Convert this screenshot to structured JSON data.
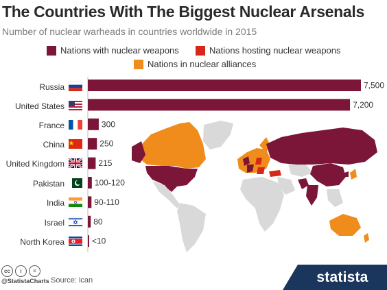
{
  "header": {
    "title": "The Countries With The Biggest Nuclear Arsenals",
    "subtitle": "Number of nuclear warheads in countries worldwide in 2015"
  },
  "legend": [
    {
      "label": "Nations with nuclear weapons",
      "color": "#7b1638"
    },
    {
      "label": "Nations hosting nuclear weapons",
      "color": "#d62718"
    },
    {
      "label": "Nations in nuclear alliances",
      "color": "#f08c1c"
    }
  ],
  "chart_data": {
    "type": "bar",
    "orientation": "horizontal",
    "title": "The Countries With The Biggest Nuclear Arsenals",
    "subtitle": "Number of nuclear warheads in countries worldwide in 2015",
    "categories": [
      "Russia",
      "United States",
      "France",
      "China",
      "United Kingdom",
      "Pakistan",
      "India",
      "Israel",
      "North Korea"
    ],
    "values": [
      7500,
      7200,
      300,
      250,
      215,
      110,
      100,
      80,
      10
    ],
    "value_labels": [
      "7,500",
      "7,200",
      "300",
      "250",
      "215",
      "100-120",
      "90-110",
      "80",
      "<10"
    ],
    "xlim": [
      0,
      7500
    ],
    "bar_color": "#7b1638",
    "grid": false
  },
  "footer": {
    "cc_icons": [
      "cc",
      "i",
      "="
    ],
    "handle": "@StatistaCharts",
    "source": "Source: ican",
    "brand": "statista"
  }
}
